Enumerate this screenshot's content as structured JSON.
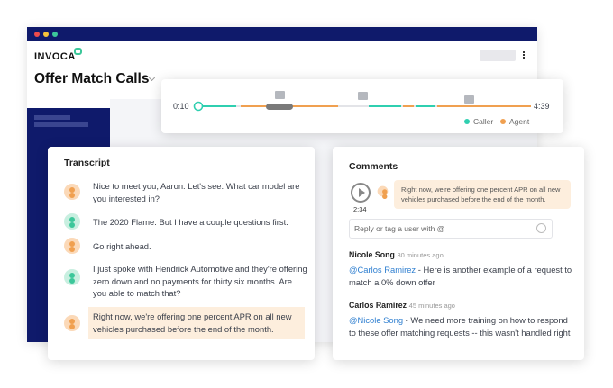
{
  "header": {
    "logo": "INVOCA",
    "title": "Offer Match Calls"
  },
  "player": {
    "start": "0:10",
    "end": "4:39",
    "legend": [
      "Caller",
      "Agent"
    ]
  },
  "transcript": {
    "title": "Transcript",
    "messages": [
      "Nice to meet you, Aaron. Let's see. What car model are you interested in?",
      "The 2020 Flame. But I have a couple questions first.",
      "Go right ahead.",
      "I just spoke with Hendrick Automotive and they're offering zero down and no payments for thirty six months. Are you able to match that?",
      "Right now, we're offering one percent APR on all new vehicles purchased before the end of the month."
    ]
  },
  "comments": {
    "title": "Comments",
    "clip": {
      "time": "2:34",
      "quote": "Right now, we're offering one percent APR on all new vehicles purchased before the end of the month."
    },
    "input_placeholder": "Reply or tag a user with @",
    "items": [
      {
        "author": "Nicole Song",
        "time": "30 minutes ago",
        "mention": "@Carlos Ramirez",
        "text": " - Here is another example of a request to match a 0% down offer"
      },
      {
        "author": "Carlos Ramirez",
        "time": "45 minutes ago",
        "mention": "@Nicole Song",
        "text": " - We need more training on how to respond to these offer matching requests -- this wasn't handled right"
      }
    ]
  }
}
